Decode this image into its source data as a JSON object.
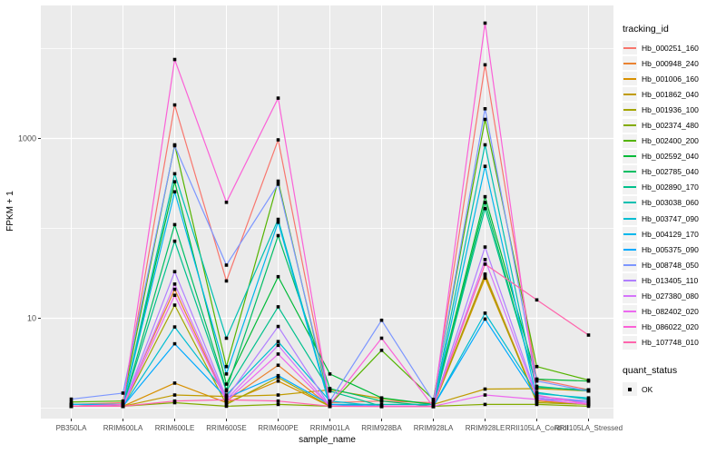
{
  "figure": {
    "background": "#ffffff",
    "panel_bg": "#EBEBEB",
    "grid_color": "#FFFFFF",
    "tick_color": "#333333",
    "tick_label_color": "#4D4D4D",
    "point_color": "#000000"
  },
  "chart_data": {
    "type": "line",
    "xlabel": "sample_name",
    "ylabel": "FPKM + 1",
    "y_scale": "log10",
    "ylim": [
      0.77,
      30000
    ],
    "grid": "on",
    "legend_position": "right",
    "y_ticks": [
      {
        "label": "10",
        "value": 10
      },
      {
        "label": "1000",
        "value": 1000
      }
    ],
    "y_minor_gridlines": [
      1,
      100,
      10000
    ],
    "categories": [
      "PB350LA",
      "RRIM600LA",
      "RRIM600LE",
      "RRIM600SE",
      "RRIM600PE",
      "RRIM901LA",
      "RRIM928BA",
      "RRIM928LA",
      "RRIM928LE",
      "RRII105LA_Control",
      "RRII105LA_Stressed"
    ],
    "series": [
      {
        "name": "Hb_000251_160",
        "color": "#F8766D",
        "values": [
          1.1,
          1.15,
          2360,
          26,
          965,
          1.15,
          1.2,
          1.15,
          6600,
          2.1,
          1.6
        ]
      },
      {
        "name": "Hb_000948_240",
        "color": "#EA8331",
        "values": [
          1.05,
          1.1,
          21,
          1.2,
          3.0,
          1.05,
          1.05,
          1.05,
          31,
          1.2,
          1.1
        ]
      },
      {
        "name": "Hb_001006_160",
        "color": "#D89000",
        "values": [
          1.05,
          1.05,
          1.9,
          1.15,
          2.0,
          1.05,
          1.05,
          1.05,
          28,
          1.2,
          1.1
        ]
      },
      {
        "name": "Hb_001862_040",
        "color": "#C09B00",
        "values": [
          1.05,
          1.05,
          1.4,
          1.35,
          1.4,
          1.6,
          1.28,
          1.1,
          1.63,
          1.65,
          1.55
        ]
      },
      {
        "name": "Hb_001936_100",
        "color": "#A4A500",
        "values": [
          1.05,
          1.05,
          14,
          1.1,
          2.2,
          1.05,
          1.05,
          1.05,
          30,
          1.15,
          1.1
        ]
      },
      {
        "name": "Hb_002374_480",
        "color": "#83AB00",
        "values": [
          1.05,
          1.05,
          1.15,
          1.05,
          1.1,
          1.05,
          1.05,
          1.05,
          1.1,
          1.1,
          1.05
        ]
      },
      {
        "name": "Hb_002400_200",
        "color": "#54B400",
        "values": [
          1.17,
          1.2,
          850,
          2.9,
          335,
          1.1,
          4.4,
          1.25,
          1630,
          2.9,
          2.05
        ]
      },
      {
        "name": "Hb_002592_040",
        "color": "#00BA38",
        "values": [
          1.05,
          1.1,
          330,
          1.85,
          29,
          2.4,
          1.3,
          1.1,
          225,
          2.1,
          2.0
        ]
      },
      {
        "name": "Hb_002785_040",
        "color": "#00BE63",
        "values": [
          1.05,
          1.05,
          110,
          1.6,
          83,
          1.65,
          1.2,
          1.05,
          194,
          1.7,
          1.6
        ]
      },
      {
        "name": "Hb_002890_170",
        "color": "#00C08C",
        "values": [
          1.05,
          1.05,
          72,
          1.55,
          13.4,
          1.55,
          1.05,
          1.05,
          166,
          1.75,
          1.55
        ]
      },
      {
        "name": "Hb_003038_060",
        "color": "#00C0B1",
        "values": [
          1.1,
          1.1,
          405,
          6.0,
          126,
          1.1,
          1.1,
          1.1,
          850,
          1.5,
          1.25
        ]
      },
      {
        "name": "Hb_003747_090",
        "color": "#00BDD1",
        "values": [
          1.05,
          1.05,
          8.0,
          1.4,
          5.5,
          1.2,
          1.05,
          1.05,
          11.4,
          1.45,
          1.3
        ]
      },
      {
        "name": "Hb_004129_170",
        "color": "#00B7EC",
        "values": [
          1.1,
          1.1,
          255,
          2.4,
          117,
          1.05,
          1.05,
          1.05,
          490,
          1.25,
          1.2
        ]
      },
      {
        "name": "Hb_005375_090",
        "color": "#00AAFF",
        "values": [
          1.05,
          1.05,
          5.2,
          1.3,
          2.3,
          1.1,
          1.05,
          1.05,
          9.8,
          1.3,
          1.15
        ]
      },
      {
        "name": "Hb_008748_050",
        "color": "#7C96FF",
        "values": [
          1.26,
          1.47,
          830,
          39,
          310,
          1.2,
          9.5,
          1.2,
          2140,
          2.0,
          1.55
        ]
      },
      {
        "name": "Hb_013405_110",
        "color": "#B07FFF",
        "values": [
          1.05,
          1.05,
          33,
          1.3,
          8.1,
          1.05,
          1.05,
          1.05,
          62,
          1.35,
          1.2
        ]
      },
      {
        "name": "Hb_027380_080",
        "color": "#D574FB",
        "values": [
          1.05,
          1.05,
          24,
          1.25,
          5.0,
          1.05,
          1.05,
          1.05,
          45,
          1.3,
          1.15
        ]
      },
      {
        "name": "Hb_082402_020",
        "color": "#EC69EF",
        "values": [
          1.05,
          1.05,
          18,
          1.2,
          4.0,
          1.05,
          1.05,
          1.05,
          1.4,
          1.25,
          1.1
        ]
      },
      {
        "name": "Hb_086022_020",
        "color": "#FB61D7",
        "values": [
          1.05,
          1.1,
          7560,
          195,
          2810,
          1.1,
          6.0,
          1.04,
          19200,
          1.4,
          1.1
        ]
      },
      {
        "name": "Hb_107748_010",
        "color": "#FF65AC",
        "values": [
          1.05,
          1.05,
          1.2,
          1.24,
          1.2,
          1.05,
          1.04,
          1.04,
          40,
          16,
          6.5
        ]
      }
    ]
  },
  "legend": {
    "title": "tracking_id"
  },
  "quant_legend": {
    "title": "quant_status",
    "items": [
      {
        "label": "OK"
      }
    ]
  }
}
